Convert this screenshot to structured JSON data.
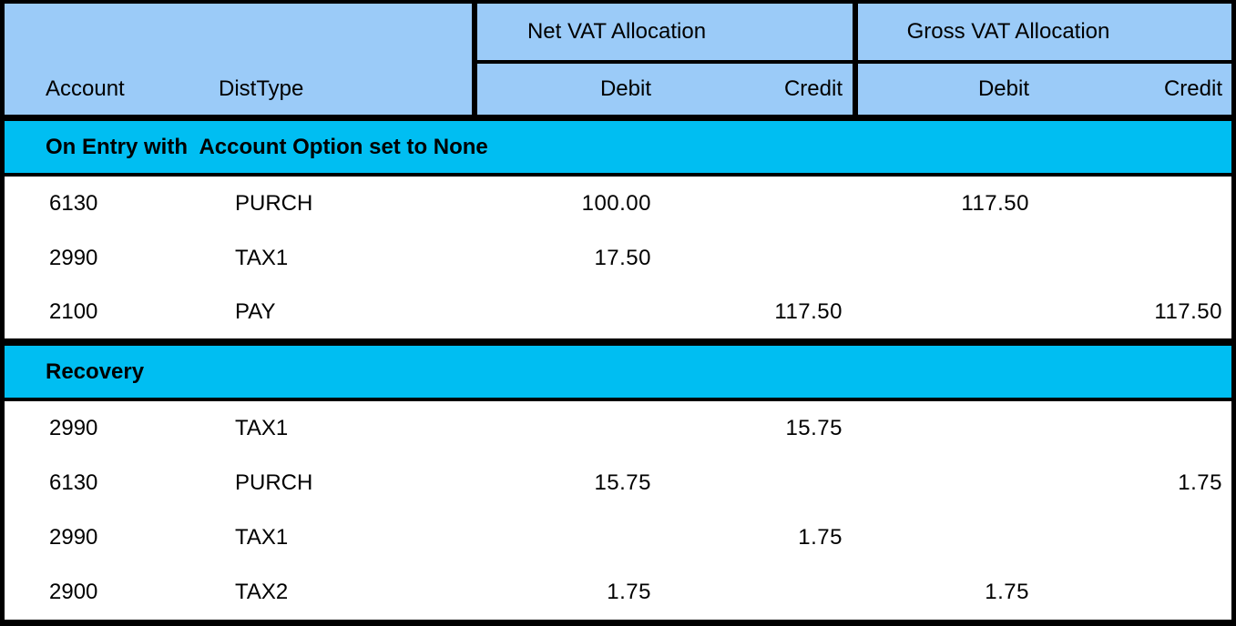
{
  "header": {
    "account": "Account",
    "disttype": "DistType",
    "net_group": "Net VAT Allocation",
    "gross_group": "Gross VAT Allocation",
    "debit": "Debit",
    "credit": "Credit"
  },
  "sections": [
    {
      "title": "On Entry with  Account Option set to None",
      "rows": [
        {
          "account": "6130",
          "disttype": "PURCH",
          "net_debit": "100.00",
          "net_credit": "",
          "gross_debit": "117.50",
          "gross_credit": ""
        },
        {
          "account": "2990",
          "disttype": "TAX1",
          "net_debit": "17.50",
          "net_credit": "",
          "gross_debit": "",
          "gross_credit": ""
        },
        {
          "account": "2100",
          "disttype": "PAY",
          "net_debit": "",
          "net_credit": "117.50",
          "gross_debit": "",
          "gross_credit": "117.50"
        }
      ]
    },
    {
      "title": "Recovery",
      "rows": [
        {
          "account": "2990",
          "disttype": "TAX1",
          "net_debit": "",
          "net_credit": "15.75",
          "gross_debit": "",
          "gross_credit": ""
        },
        {
          "account": "6130",
          "disttype": "PURCH",
          "net_debit": "15.75",
          "net_credit": "",
          "gross_debit": "",
          "gross_credit": "1.75"
        },
        {
          "account": "2990",
          "disttype": "TAX1",
          "net_debit": "",
          "net_credit": "1.75",
          "gross_debit": "",
          "gross_credit": ""
        },
        {
          "account": "2900",
          "disttype": "TAX2",
          "net_debit": "1.75",
          "net_credit": "",
          "gross_debit": "1.75",
          "gross_credit": ""
        }
      ]
    }
  ],
  "colors": {
    "header_blue": "#9BCBF8",
    "section_cyan": "#00BEF2",
    "border_black": "#000000",
    "row_white": "#FFFFFF"
  }
}
